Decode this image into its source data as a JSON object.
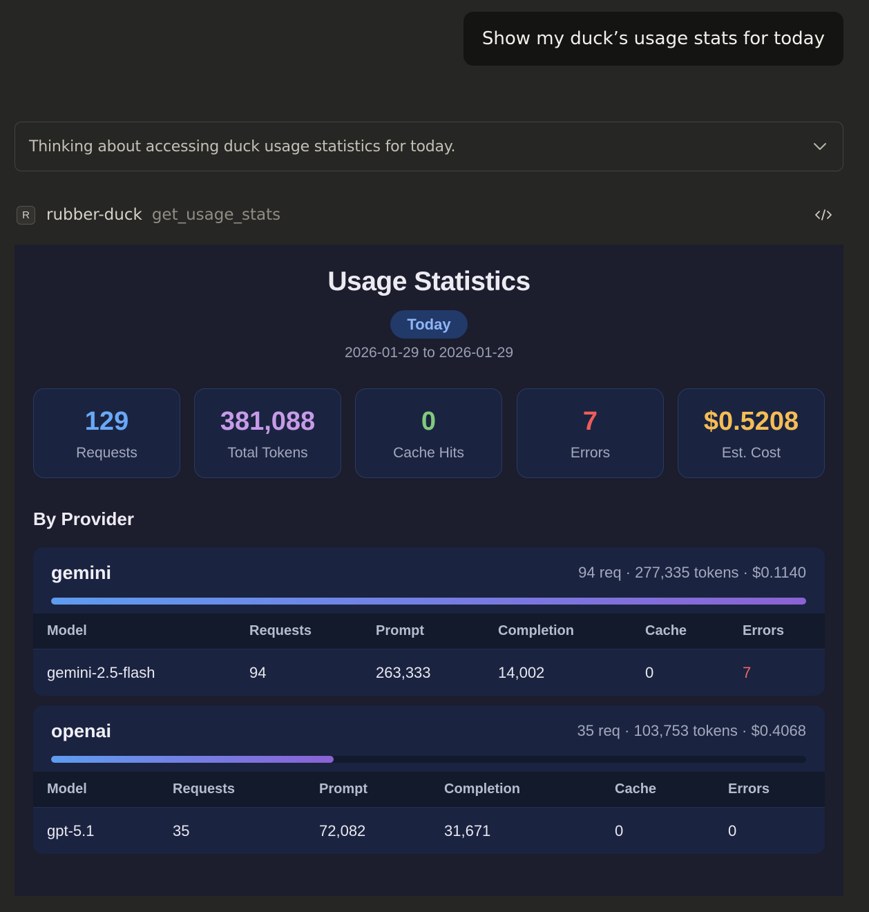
{
  "user_message": "Show my duck’s usage stats for today",
  "thinking": {
    "text": "Thinking about accessing duck usage statistics for today.",
    "chevron_icon": "chevron-down-icon"
  },
  "tool_call": {
    "badge": "R",
    "server": "rubber-duck",
    "function": "get_usage_stats",
    "code_icon": "code-icon"
  },
  "usage": {
    "title": "Usage Statistics",
    "period": "Today",
    "date_range": "2026-01-29 to 2026-01-29",
    "stats": [
      {
        "value": "129",
        "label": "Requests",
        "color": "#6aa8f7"
      },
      {
        "value": "381,088",
        "label": "Total Tokens",
        "color": "#c79be8"
      },
      {
        "value": "0",
        "label": "Cache Hits",
        "color": "#82c97c"
      },
      {
        "value": "7",
        "label": "Errors",
        "color": "#ee5d58"
      },
      {
        "value": "$0.5208",
        "label": "Est. Cost",
        "color": "#f6bd55"
      }
    ],
    "section_title": "By Provider",
    "providers": [
      {
        "name": "gemini",
        "summary": "94 req · 277,335 tokens · $0.1140",
        "share": 1.0,
        "headers": [
          "Model",
          "Requests",
          "Prompt",
          "Completion",
          "Cache",
          "Errors"
        ],
        "rows": [
          [
            "gemini-2.5-flash",
            "94",
            "263,333",
            "14,002",
            "0",
            "7"
          ]
        ]
      },
      {
        "name": "openai",
        "summary": "35 req · 103,753 tokens · $0.4068",
        "share": 0.374,
        "headers": [
          "Model",
          "Requests",
          "Prompt",
          "Completion",
          "Cache",
          "Errors"
        ],
        "rows": [
          [
            "gpt-5.1",
            "35",
            "72,082",
            "31,671",
            "0",
            "0"
          ]
        ]
      }
    ]
  }
}
